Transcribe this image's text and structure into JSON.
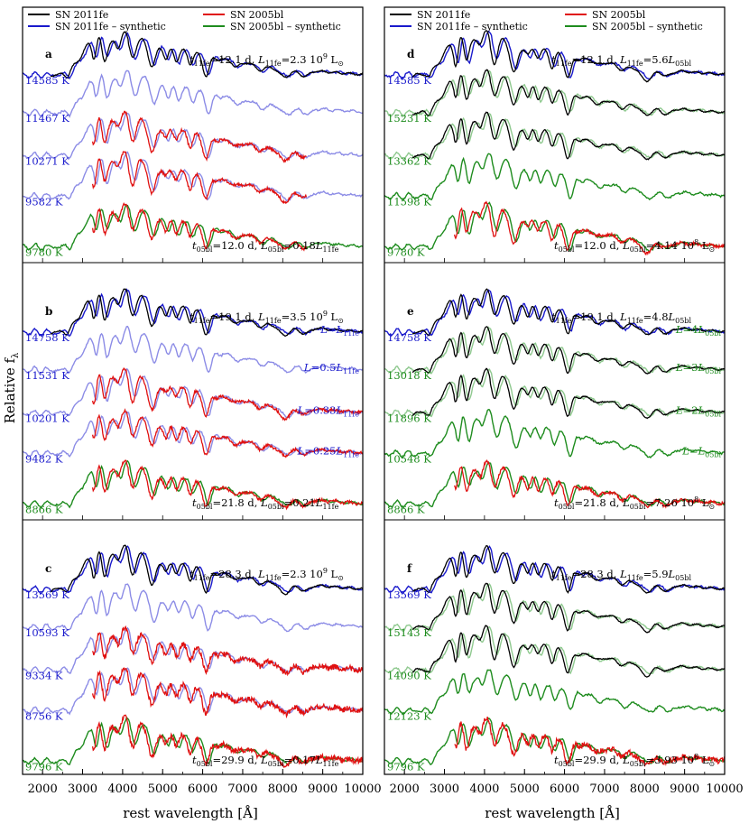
{
  "chart_data": {
    "type": "line",
    "xlabel": "rest wavelength [Å]",
    "ylabel": "Relative f",
    "ylabel_sub": "λ",
    "xlim": [
      1500,
      10000
    ],
    "x_ticks": [
      "2000",
      "3000",
      "4000",
      "5000",
      "6000",
      "7000",
      "8000",
      "9000",
      "10000"
    ],
    "legend": {
      "sn11": "SN 2011fe",
      "sn11syn": "SN 2011fe – synthetic",
      "sn05": "SN 2005bl",
      "sn05syn": "SN 2005bl – synthetic"
    },
    "colors": {
      "sn11": "#000000",
      "sn11syn": "#1a1acc",
      "sn11syn_light": "#8c8ce6",
      "sn05": "#e01010",
      "sn05syn": "#1e8c1e",
      "sn05syn_light": "#8fc98f"
    },
    "panels": [
      {
        "id": "a",
        "letter": "a",
        "top_annotation": {
          "t": "t",
          "tsub": "11fe",
          "eq": "=12.1 d, ",
          "L": "L",
          "Lsub": "11fe",
          "rest": "=2.3 10",
          "sup": "9",
          "unit": " L",
          "unitsub": "⊙"
        },
        "bottom_annotation": {
          "t": "t",
          "tsub": "05bl",
          "eq": "=12.0 d, ",
          "L": "L",
          "Lsub": "05bl",
          "rest": "=0.18",
          "L2": "L",
          "L2sub": "11fe"
        },
        "rows": [
          {
            "temp": "14585 K",
            "color": "sn11syn",
            "obs": "sn11"
          },
          {
            "temp": "11467 K",
            "color": "sn11syn_light"
          },
          {
            "temp": "10271 K",
            "color": "sn11syn_light",
            "obs": "sn05"
          },
          {
            "temp": "9582 K",
            "color": "sn11syn_light",
            "obs": "sn05"
          },
          {
            "temp": "9780 K",
            "color": "sn05syn",
            "obs": "sn05",
            "tempcolor": "sn05syn"
          }
        ],
        "right_labels": []
      },
      {
        "id": "b",
        "letter": "b",
        "top_annotation": {
          "t": "t",
          "tsub": "11fe",
          "eq": "=19.1 d, ",
          "L": "L",
          "Lsub": "11fe",
          "rest": "=3.5 10",
          "sup": "9",
          "unit": " L",
          "unitsub": "⊙"
        },
        "bottom_annotation": {
          "t": "t",
          "tsub": "05bl",
          "eq": "=21.8 d, ",
          "L": "L",
          "Lsub": "05bl",
          "rest": "=0.21",
          "L2": "L",
          "L2sub": "11fe"
        },
        "rows": [
          {
            "temp": "14758 K",
            "color": "sn11syn",
            "obs": "sn11"
          },
          {
            "temp": "11531 K",
            "color": "sn11syn_light"
          },
          {
            "temp": "10201 K",
            "color": "sn11syn_light",
            "obs": "sn05"
          },
          {
            "temp": "9482 K",
            "color": "sn11syn_light",
            "obs": "sn05"
          },
          {
            "temp": "8866 K",
            "color": "sn05syn",
            "obs": "sn05",
            "tempcolor": "sn05syn"
          }
        ],
        "right_labels": [
          {
            "pre": "L",
            "eq": "=",
            "coef": "",
            "L": "L",
            "sub": "11fe"
          },
          {
            "pre": "L",
            "eq": "=",
            "coef": "0.5",
            "L": "L",
            "sub": "11fe"
          },
          {
            "pre": "L",
            "eq": "=",
            "coef": "0.33",
            "L": "L",
            "sub": "11fe"
          },
          {
            "pre": "L",
            "eq": "=",
            "coef": "0.25",
            "L": "L",
            "sub": "11fe"
          }
        ],
        "right_color": "sn11syn"
      },
      {
        "id": "c",
        "letter": "c",
        "top_annotation": {
          "t": "t",
          "tsub": "11fe",
          "eq": "=28.3 d, ",
          "L": "L",
          "Lsub": "11fe",
          "rest": "=2.3 10",
          "sup": "9",
          "unit": " L",
          "unitsub": "⊙"
        },
        "bottom_annotation": {
          "t": "t",
          "tsub": "05bl",
          "eq": "=29.9 d, ",
          "L": "L",
          "Lsub": "05bl",
          "rest": "=0.17",
          "L2": "L",
          "L2sub": "11fe"
        },
        "rows": [
          {
            "temp": "13569 K",
            "color": "sn11syn",
            "obs": "sn11"
          },
          {
            "temp": "10593 K",
            "color": "sn11syn_light"
          },
          {
            "temp": "9334 K",
            "color": "sn11syn_light",
            "obs": "sn05"
          },
          {
            "temp": "8756 K",
            "color": "sn11syn_light",
            "obs": "sn05"
          },
          {
            "temp": "9796 K",
            "color": "sn05syn",
            "obs": "sn05",
            "tempcolor": "sn05syn"
          }
        ],
        "right_labels": []
      },
      {
        "id": "d",
        "letter": "d",
        "top_annotation": {
          "t": "t",
          "tsub": "11fe",
          "eq": "=12.1 d, ",
          "L": "L",
          "Lsub": "11fe",
          "rest": "=5.6",
          "L2": "L",
          "L2sub": "05bl"
        },
        "bottom_annotation": {
          "t": "t",
          "tsub": "05bl",
          "eq": "=12.0 d, ",
          "L": "L",
          "Lsub": "05bl",
          "rest": "=4.14 10",
          "sup": "8",
          "unit": " L",
          "unitsub": "⊙"
        },
        "rows": [
          {
            "temp": "14585 K",
            "color": "sn11syn",
            "obs": "sn11",
            "tempcolor": "sn11syn"
          },
          {
            "temp": "15231 K",
            "color": "sn05syn_light",
            "obs": "sn11",
            "tempcolor": "sn05syn"
          },
          {
            "temp": "13362 K",
            "color": "sn05syn_light",
            "obs": "sn11",
            "tempcolor": "sn05syn"
          },
          {
            "temp": "11598 K",
            "color": "sn05syn",
            "tempcolor": "sn05syn"
          },
          {
            "temp": "9780 K",
            "color": "sn05syn",
            "obs": "sn05",
            "tempcolor": "sn05syn"
          }
        ],
        "right_labels": []
      },
      {
        "id": "e",
        "letter": "e",
        "top_annotation": {
          "t": "t",
          "tsub": "11fe",
          "eq": "=19.1 d, ",
          "L": "L",
          "Lsub": "11fe",
          "rest": "=4.8",
          "L2": "L",
          "L2sub": "05bl"
        },
        "bottom_annotation": {
          "t": "t",
          "tsub": "05bl",
          "eq": "=21.8 d, ",
          "L": "L",
          "Lsub": "05bl",
          "rest": "=7.26 10",
          "sup": "8",
          "unit": " L",
          "unitsub": "⊙"
        },
        "rows": [
          {
            "temp": "14758 K",
            "color": "sn11syn",
            "obs": "sn11",
            "tempcolor": "sn11syn"
          },
          {
            "temp": "13018 K",
            "color": "sn05syn_light",
            "obs": "sn11",
            "tempcolor": "sn05syn"
          },
          {
            "temp": "11896 K",
            "color": "sn05syn_light",
            "obs": "sn11",
            "tempcolor": "sn05syn"
          },
          {
            "temp": "10548 K",
            "color": "sn05syn",
            "tempcolor": "sn05syn"
          },
          {
            "temp": "8866 K",
            "color": "sn05syn",
            "obs": "sn05",
            "tempcolor": "sn05syn"
          }
        ],
        "right_labels": [
          {
            "pre": "L",
            "eq": "=",
            "coef": "4",
            "L": "L",
            "sub": "05bl"
          },
          {
            "pre": "L",
            "eq": "=",
            "coef": "3",
            "L": "L",
            "sub": "05bl"
          },
          {
            "pre": "L",
            "eq": "=",
            "coef": "2",
            "L": "L",
            "sub": "05bl"
          },
          {
            "pre": "L",
            "eq": "=",
            "coef": "",
            "L": "L",
            "sub": "05bl"
          }
        ],
        "right_color": "sn05syn"
      },
      {
        "id": "f",
        "letter": "f",
        "top_annotation": {
          "t": "t",
          "tsub": "11fe",
          "eq": "=28.3 d, ",
          "L": "L",
          "Lsub": "11fe",
          "rest": "=5.9",
          "L2": "L",
          "L2sub": "05bl"
        },
        "bottom_annotation": {
          "t": "t",
          "tsub": "05bl",
          "eq": "=29.9 d, ",
          "L": "L",
          "Lsub": "05bl",
          "rest": "=3.93 10",
          "sup": "8",
          "unit": " L",
          "unitsub": "⊙"
        },
        "rows": [
          {
            "temp": "13569 K",
            "color": "sn11syn",
            "obs": "sn11",
            "tempcolor": "sn11syn"
          },
          {
            "temp": "15143 K",
            "color": "sn05syn_light",
            "obs": "sn11",
            "tempcolor": "sn05syn"
          },
          {
            "temp": "14090 K",
            "color": "sn05syn_light",
            "obs": "sn11",
            "tempcolor": "sn05syn"
          },
          {
            "temp": "12123 K",
            "color": "sn05syn",
            "tempcolor": "sn05syn"
          },
          {
            "temp": "9796 K",
            "color": "sn05syn",
            "obs": "sn05",
            "tempcolor": "sn05syn"
          }
        ],
        "right_labels": []
      }
    ]
  }
}
